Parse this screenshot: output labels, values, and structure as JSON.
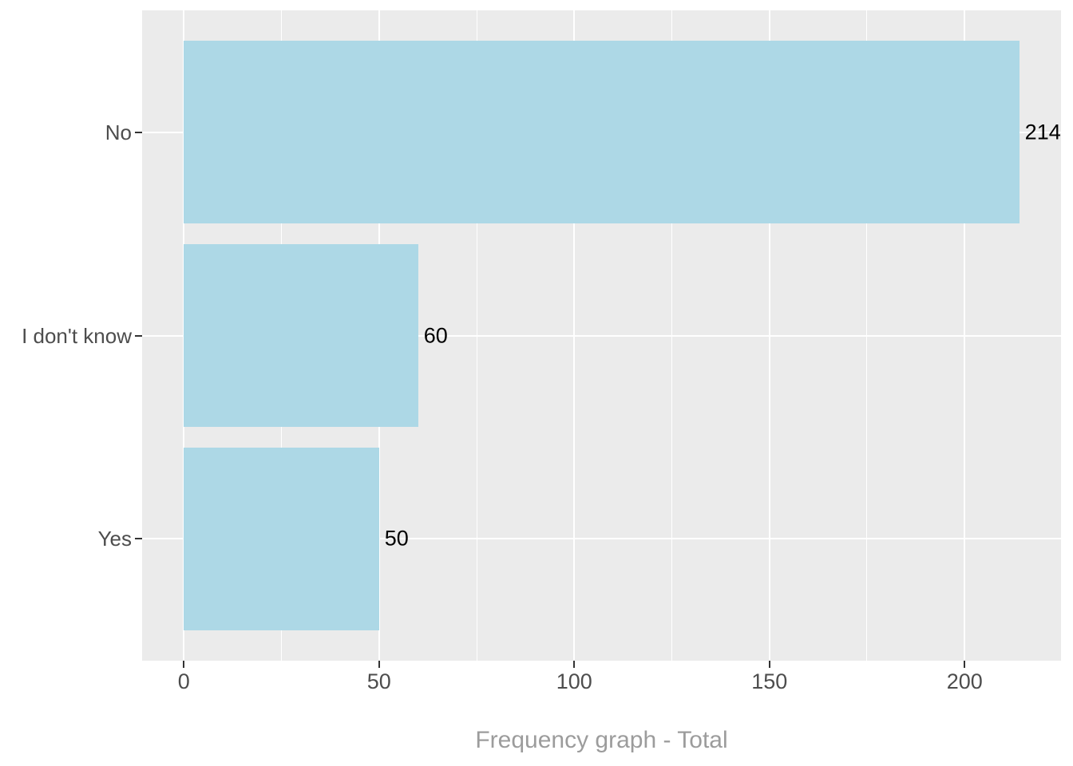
{
  "chart_data": {
    "type": "bar",
    "orientation": "horizontal",
    "title": "Frequency graph - Total",
    "categories": [
      "No",
      "I don't know",
      "Yes"
    ],
    "values": [
      214,
      60,
      50
    ],
    "value_labels": [
      "214",
      "60",
      "50"
    ],
    "x_ticks": [
      0,
      50,
      100,
      150,
      200
    ],
    "x_minor_ticks": [
      25,
      75,
      125,
      175,
      225
    ],
    "xlim": [
      -10.7,
      224.7
    ],
    "grid": true,
    "legend": false,
    "colors": {
      "bar_fill": "#ADD8E6",
      "panel_background": "#EBEBEB",
      "major_gridline": "#FFFFFF",
      "minor_gridline": "#FFFFFF",
      "axis_text": "#4D4D4D",
      "value_label": "#000000",
      "title_text": "#9C9C9C",
      "axis_tick_mark": "#333333",
      "figure_background": "#FFFFFF"
    }
  }
}
